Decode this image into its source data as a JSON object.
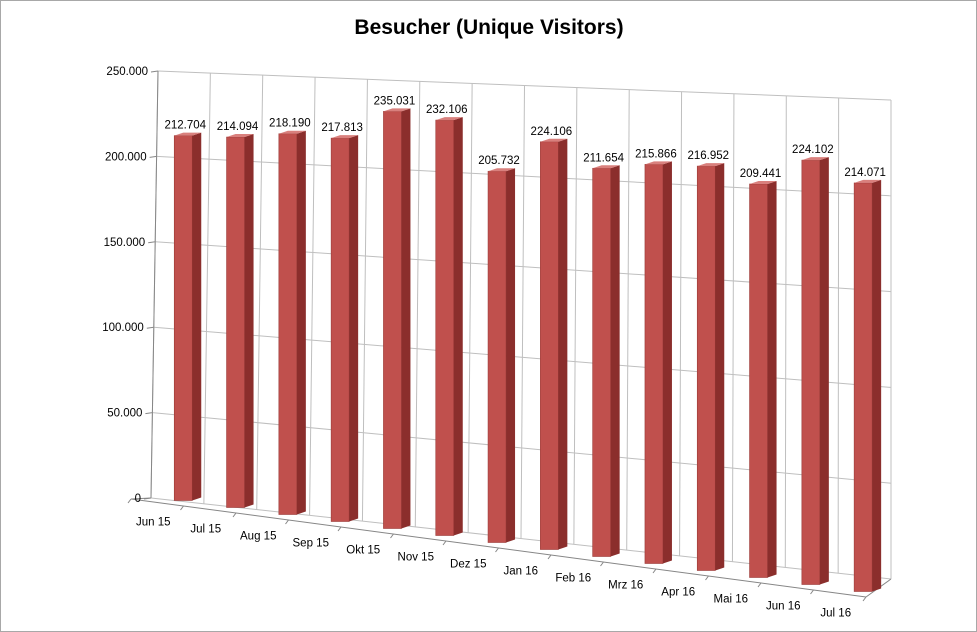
{
  "chart_data": {
    "type": "bar",
    "title": "Besucher (Unique Visitors)",
    "xlabel": "",
    "ylabel": "",
    "categories": [
      "Jun 15",
      "Jul 15",
      "Aug 15",
      "Sep 15",
      "Okt 15",
      "Nov 15",
      "Dez 15",
      "Jan 16",
      "Feb 16",
      "Mrz 16",
      "Apr 16",
      "Mai 16",
      "Jun 16",
      "Jul 16"
    ],
    "values": [
      212704,
      214094,
      218190,
      217813,
      235031,
      232106,
      205732,
      224106,
      211654,
      215866,
      216952,
      209441,
      224102,
      214071
    ],
    "value_labels": [
      "212.704",
      "214.094",
      "218.190",
      "217.813",
      "235.031",
      "232.106",
      "205.732",
      "224.106",
      "211.654",
      "215.866",
      "216.952",
      "209.441",
      "224.102",
      "214.071"
    ],
    "ylim": [
      0,
      250000
    ],
    "y_ticks": [
      0,
      50000,
      100000,
      150000,
      200000,
      250000
    ],
    "y_tick_labels": [
      "0",
      "50.000",
      "100.000",
      "150.000",
      "200.000",
      "250.000"
    ],
    "grid": true,
    "legend": "none",
    "style": "3d-column",
    "colors": {
      "bar_front": "#c0504d",
      "bar_side": "#8b2e2c",
      "bar_top": "#d9807d",
      "gridline": "#bfbfbf",
      "axis": "#868686"
    }
  }
}
